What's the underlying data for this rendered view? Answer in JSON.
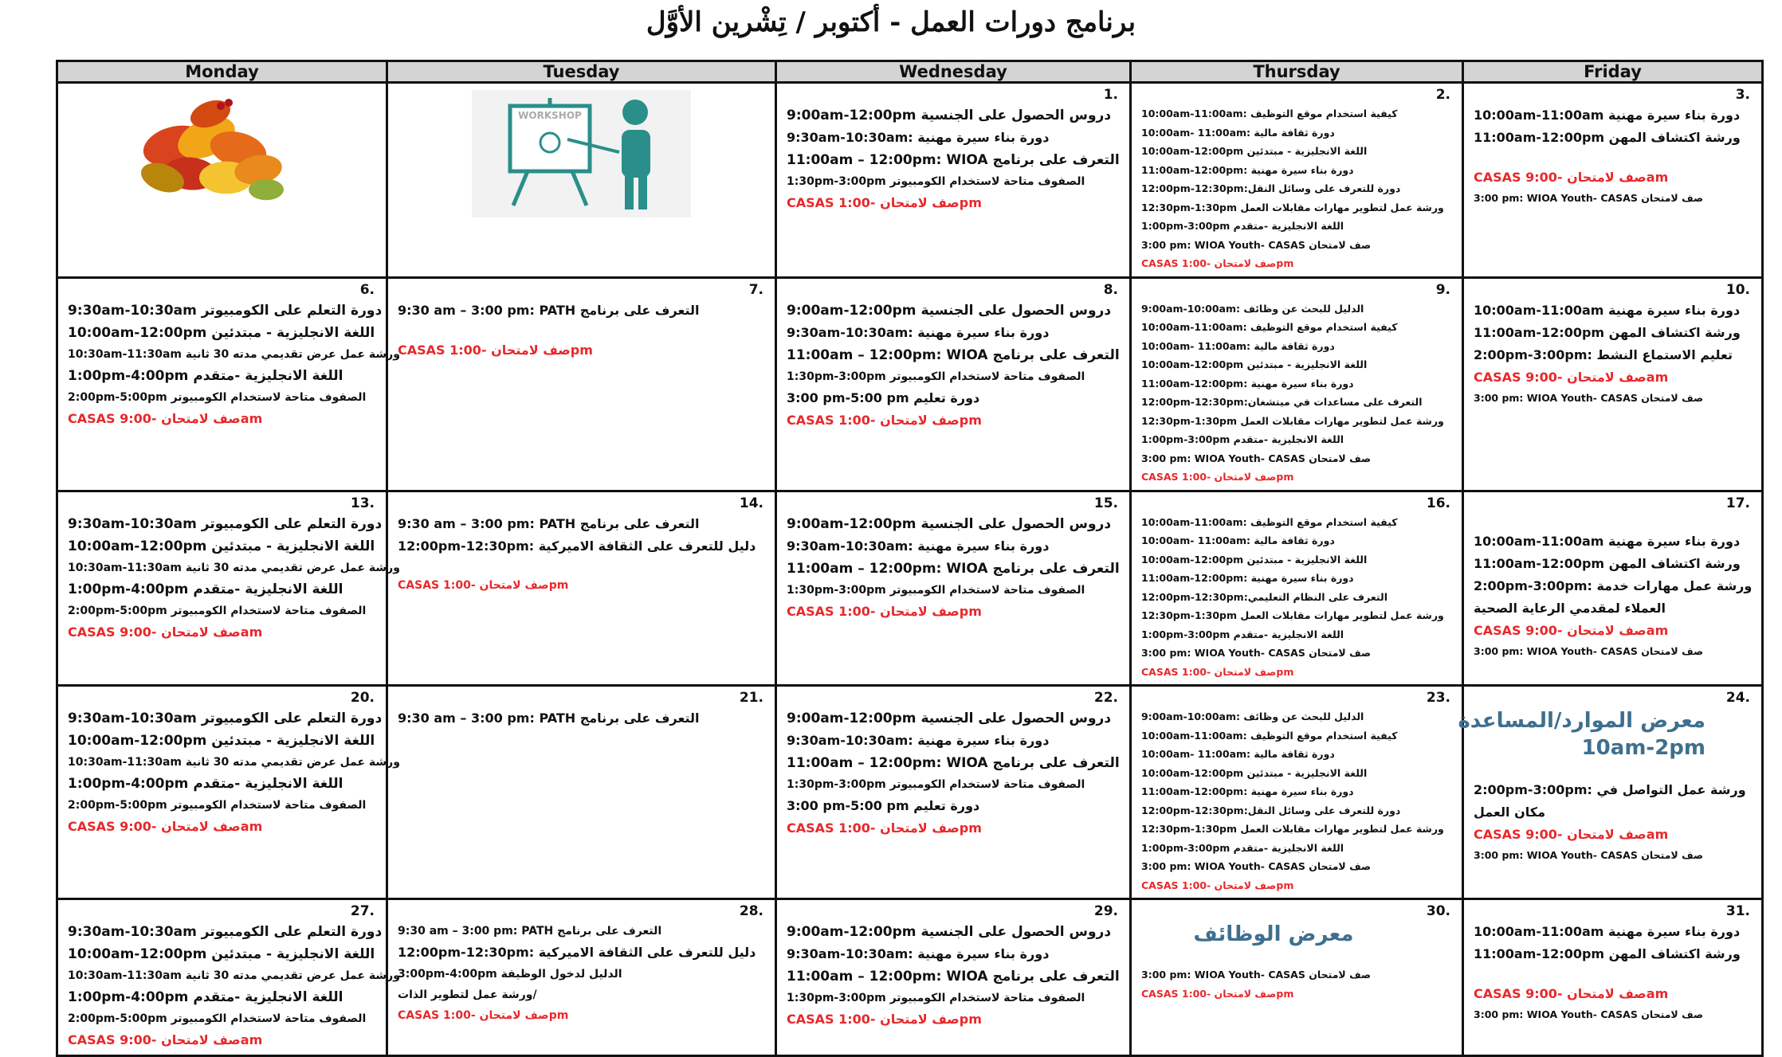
{
  "title": "برنامج دورات العمل - أكتوبر / تِشْرين الأوَّل",
  "weekdays": [
    "Monday",
    "Tuesday",
    "Wednesday",
    "Thursday",
    "Friday"
  ],
  "colors": {
    "header_bg": "#d4d4d4",
    "red": "#e8282b",
    "blue": "#3f6f8f"
  },
  "weeks": [
    [
      {
        "date": "",
        "image": "autumn-leaves",
        "lines": []
      },
      {
        "date": "",
        "image": "workshop",
        "image_text": "WORKSHOP",
        "lines": []
      },
      {
        "date": "1.",
        "lines": [
          {
            "c": "l",
            "t": "9:00am-12:00pm دروس الحصول على الجنسية"
          },
          {
            "c": "m",
            "t": "9:30am-10:30am: دورة بناء سيرة مهنية"
          },
          {
            "c": "l",
            "t": "11:00am – 12:00pm:  WIOA التعرف على برنامج"
          },
          {
            "c": "s",
            "t": "1:30pm-3:00pm الصفوف متاحة لاستخدام الكومبيوتر"
          },
          {
            "c": "m red",
            "t": "CASAS صف لامتحان -1:00pm"
          }
        ]
      },
      {
        "date": "2.",
        "lines": [
          {
            "c": "xs",
            "t": "10:00am-11:00am: كيفية استخدام موقع التوظيف"
          },
          {
            "c": "xs",
            "t": "10:00am- 11:00am:   دورة ثقافة مالية"
          },
          {
            "c": "xs",
            "t": "10:00am-12:00pm اللغة الانجليزية - مبتدئين"
          },
          {
            "c": "xs",
            "t": "11:00am-12:00pm: دورة بناء سيرة مهنية"
          },
          {
            "c": "xs",
            "t": "12:00pm-12:30pm:دورة للتعرف على وسائل النقل"
          },
          {
            "c": "xs",
            "t": "12:30pm-1:30pm ورشة عمل لتطوير مهارات مقابلات العمل"
          },
          {
            "c": "xs",
            "t": "1:00pm-3:00pm اللغة الانجليزية -متقدم"
          },
          {
            "c": "xs",
            "t": "3:00 pm: WIOA Youth- CASAS صف لامتحان"
          },
          {
            "c": "xs red",
            "t": "CASAS صف لامتحان -1:00pm"
          }
        ]
      },
      {
        "date": "3.",
        "lines": [
          {
            "c": "m",
            "t": "10:00am-11:00am دورة بناء سيرة مهنية"
          },
          {
            "c": "m",
            "t": "11:00am-12:00pm ورشة اكتشاف المهن"
          },
          {
            "gap": true
          },
          {
            "c": "m red",
            "t": "CASAS صف لامتحان -9:00am"
          },
          {
            "c": "xs",
            "t": "3:00 pm: WIOA Youth- CASAS صف لامتحان"
          }
        ]
      }
    ],
    [
      {
        "date": "6.",
        "lines": [
          {
            "c": "l",
            "t": "9:30am-10:30am دورة التعلم على الكومبيوتر"
          },
          {
            "c": "l",
            "t": "10:00am-12:00pm اللغة الانجليزية - مبتدئين"
          },
          {
            "c": "s",
            "t": "10:30am-11:30am ورشة عمل عرض تقديمي مدته 30 ثانية"
          },
          {
            "c": "l",
            "t": "1:00pm-4:00pm اللغة الانجليزية -متقدم"
          },
          {
            "c": "s",
            "t": "2:00pm-5:00pm الصفوف متاحة لاستخدام الكومبيوتر"
          },
          {
            "c": "m red",
            "t": "CASAS صف لامتحان -9:00am"
          }
        ]
      },
      {
        "date": "7.",
        "lines": [
          {
            "c": "m",
            "t": "9:30 am – 3:00 pm:  PATH التعرف على برنامج"
          },
          {
            "gap": true
          },
          {
            "c": "m red",
            "t": "CASAS صف لامتحان -1:00pm"
          }
        ]
      },
      {
        "date": "8.",
        "lines": [
          {
            "c": "l",
            "t": "9:00am-12:00pm دروس الحصول على الجنسية"
          },
          {
            "c": "m",
            "t": "9:30am-10:30am: دورة بناء سيرة مهنية"
          },
          {
            "c": "l",
            "t": "11:00am – 12:00pm:  WIOA التعرف على برنامج"
          },
          {
            "c": "s",
            "t": "1:30pm-3:00pm الصفوف متاحة لاستخدام الكومبيوتر"
          },
          {
            "c": "m",
            "t": "3:00 pm-5:00 pm دورة تعليم"
          },
          {
            "c": "m red",
            "t": "CASAS صف لامتحان -1:00pm"
          }
        ]
      },
      {
        "date": "9.",
        "lines": [
          {
            "c": "xs",
            "t": "9:00am-10:00am: الدليل للبحث عن وظائف"
          },
          {
            "c": "xs",
            "t": "10:00am-11:00am: كيفية استخدام موقع التوظيف"
          },
          {
            "c": "xs",
            "t": "10:00am- 11:00am:   دورة ثقافة مالية"
          },
          {
            "c": "xs",
            "t": "10:00am-12:00pm اللغة الانجليزية - مبتدئين"
          },
          {
            "c": "xs",
            "t": "11:00am-12:00pm: دورة بناء سيرة مهنية"
          },
          {
            "c": "xs",
            "t": "12:00pm-12:30pm:التعرف على مساعدات في ميتشغان"
          },
          {
            "c": "xs",
            "t": "12:30pm-1:30pm ورشة عمل لتطوير مهارات مقابلات العمل"
          },
          {
            "c": "xs",
            "t": "1:00pm-3:00pm اللغة الانجليزية -متقدم"
          },
          {
            "c": "xs",
            "t": "3:00 pm: WIOA Youth- CASAS صف لامتحان"
          },
          {
            "c": "xs red",
            "t": "CASAS صف لامتحان -1:00pm"
          }
        ]
      },
      {
        "date": "10.",
        "lines": [
          {
            "c": "m",
            "t": "10:00am-11:00am دورة بناء سيرة مهنية"
          },
          {
            "c": "m",
            "t": "11:00am-12:00pm ورشة اكتشاف المهن"
          },
          {
            "c": "m",
            "t": "2:00pm-3:00pm: تعليم الاستماع النشط"
          },
          {
            "c": "m red",
            "t": "CASAS صف لامتحان -9:00am"
          },
          {
            "c": "xs",
            "t": "3:00 pm: WIOA Youth- CASAS صف لامتحان"
          }
        ]
      }
    ],
    [
      {
        "date": "13.",
        "lines": [
          {
            "c": "l",
            "t": "9:30am-10:30am دورة التعلم على الكومبيوتر"
          },
          {
            "c": "l",
            "t": "10:00am-12:00pm اللغة الانجليزية - مبتدئين"
          },
          {
            "c": "s",
            "t": "10:30am-11:30am ورشة عمل عرض تقديمي مدته 30 ثانية"
          },
          {
            "c": "l",
            "t": "1:00pm-4:00pm اللغة الانجليزية -متقدم"
          },
          {
            "c": "s",
            "t": "2:00pm-5:00pm الصفوف متاحة لاستخدام الكومبيوتر"
          },
          {
            "c": "m red",
            "t": "CASAS صف لامتحان -9:00am"
          }
        ]
      },
      {
        "date": "14.",
        "lines": [
          {
            "c": "m",
            "t": "9:30 am – 3:00 pm:  PATH التعرف على برنامج"
          },
          {
            "c": "m",
            "t": "12:00pm-12:30pm: دليل للتعرف على الثقافة الاميركية"
          },
          {
            "gap": true
          },
          {
            "c": "s red",
            "t": "CASAS صف لامتحان -1:00pm"
          }
        ]
      },
      {
        "date": "15.",
        "lines": [
          {
            "c": "l",
            "t": "9:00am-12:00pm دروس الحصول على الجنسية"
          },
          {
            "c": "m",
            "t": "9:30am-10:30am: دورة بناء سيرة مهنية"
          },
          {
            "c": "l",
            "t": "11:00am – 12:00pm:  WIOA التعرف على برنامج"
          },
          {
            "c": "s",
            "t": "1:30pm-3:00pm الصفوف متاحة لاستخدام الكومبيوتر"
          },
          {
            "c": "m red",
            "t": "CASAS صف لامتحان -1:00pm"
          }
        ]
      },
      {
        "date": "16.",
        "lines": [
          {
            "c": "xs",
            "t": "10:00am-11:00am: كيفية استخدام موقع التوظيف"
          },
          {
            "c": "xs",
            "t": "10:00am- 11:00am:   دورة ثقافة مالية"
          },
          {
            "c": "xs",
            "t": "10:00am-12:00pm اللغة الانجليزية - مبتدئين"
          },
          {
            "c": "xs",
            "t": "11:00am-12:00pm: دورة بناء سيرة مهنية"
          },
          {
            "c": "xs",
            "t": "12:00pm-12:30pm:التعرف على النظام التعليمي"
          },
          {
            "c": "xs",
            "t": "12:30pm-1:30pm ورشة عمل لتطوير مهارات مقابلات العمل"
          },
          {
            "c": "xs",
            "t": "1:00pm-3:00pm اللغة الانجليزية -متقدم"
          },
          {
            "c": "xs",
            "t": "3:00 pm: WIOA Youth- CASAS صف لامتحان"
          },
          {
            "c": "xs red",
            "t": "CASAS صف لامتحان -1:00pm"
          }
        ]
      },
      {
        "date": "17.",
        "lines": [
          {
            "gap": true
          },
          {
            "c": "m",
            "t": "10:00am-11:00am دورة بناء سيرة مهنية"
          },
          {
            "c": "m",
            "t": "11:00am-12:00pm ورشة اكتشاف المهن"
          },
          {
            "c": "m wrap",
            "t": "2:00pm-3:00pm:  ورشة عمل مهارات خدمة العملاء لمقدمي الرعاية الصحية"
          },
          {
            "c": "m red",
            "t": "CASAS صف لامتحان -9:00am"
          },
          {
            "c": "xs",
            "t": "3:00 pm: WIOA Youth- CASAS صف لامتحان"
          }
        ]
      }
    ],
    [
      {
        "date": "20.",
        "lines": [
          {
            "c": "l",
            "t": "9:30am-10:30am دورة التعلم على الكومبيوتر"
          },
          {
            "c": "l",
            "t": "10:00am-12:00pm اللغة الانجليزية - مبتدئين"
          },
          {
            "c": "s",
            "t": "10:30am-11:30am ورشة عمل عرض تقديمي مدته 30 ثانية"
          },
          {
            "c": "l",
            "t": "1:00pm-4:00pm اللغة الانجليزية -متقدم"
          },
          {
            "c": "s",
            "t": "2:00pm-5:00pm الصفوف متاحة لاستخدام الكومبيوتر"
          },
          {
            "c": "m red",
            "t": "CASAS صف لامتحان -9:00am"
          }
        ]
      },
      {
        "date": "21.",
        "lines": [
          {
            "c": "m",
            "t": "9:30 am – 3:00 pm:  PATH التعرف على برنامج"
          }
        ]
      },
      {
        "date": "22.",
        "lines": [
          {
            "c": "l",
            "t": "9:00am-12:00pm دروس الحصول على الجنسية"
          },
          {
            "c": "m",
            "t": "9:30am-10:30am: دورة بناء سيرة مهنية"
          },
          {
            "c": "l",
            "t": "11:00am – 12:00pm:  WIOA التعرف على برنامج"
          },
          {
            "c": "s",
            "t": "1:30pm-3:00pm الصفوف متاحة لاستخدام الكومبيوتر"
          },
          {
            "c": "m",
            "t": "3:00 pm-5:00 pm دورة تعليم"
          },
          {
            "c": "m red",
            "t": "CASAS صف لامتحان -1:00pm"
          }
        ]
      },
      {
        "date": "23.",
        "lines": [
          {
            "c": "xs",
            "t": "9:00am-10:00am: الدليل للبحث عن وظائف"
          },
          {
            "c": "xs",
            "t": "10:00am-11:00am: كيفية استخدام موقع التوظيف"
          },
          {
            "c": "xs",
            "t": "10:00am- 11:00am:   دورة ثقافة مالية"
          },
          {
            "c": "xs",
            "t": "10:00am-12:00pm اللغة الانجليزية - مبتدئين"
          },
          {
            "c": "xs",
            "t": "11:00am-12:00pm: دورة بناء سيرة مهنية"
          },
          {
            "c": "xs",
            "t": "12:00pm-12:30pm:دورة للتعرف على وسائل النقل"
          },
          {
            "c": "xs",
            "t": "12:30pm-1:30pm ورشة عمل لتطوير مهارات مقابلات العمل"
          },
          {
            "c": "xs",
            "t": "1:00pm-3:00pm اللغة الانجليزية -متقدم"
          },
          {
            "c": "xs",
            "t": "3:00 pm: WIOA Youth- CASAS صف لامتحان"
          },
          {
            "c": "xs red",
            "t": "CASAS صف لامتحان -1:00pm"
          }
        ]
      },
      {
        "date": "24.",
        "lines": [
          {
            "c": "blue",
            "t": "معرض الموارد/المساعدة"
          },
          {
            "c": "blue",
            "t": "10am-2pm"
          },
          {
            "gap": true
          },
          {
            "c": "m wrap",
            "t": "2:00pm-3:00pm:  ورشة عمل التواصل في مكان العمل"
          },
          {
            "c": "m red",
            "t": "CASAS صف لامتحان -9:00am"
          },
          {
            "c": "xs",
            "t": "3:00 pm: WIOA Youth- CASAS صف لامتحان"
          }
        ]
      }
    ],
    [
      {
        "date": "27.",
        "lines": [
          {
            "c": "l",
            "t": "9:30am-10:30am دورة التعلم على الكومبيوتر"
          },
          {
            "c": "l",
            "t": "10:00am-12:00pm اللغة الانجليزية - مبتدئين"
          },
          {
            "c": "s",
            "t": "10:30am-11:30am ورشة عمل عرض تقديمي مدته 30 ثانية"
          },
          {
            "c": "l",
            "t": "1:00pm-4:00pm اللغة الانجليزية -متقدم"
          },
          {
            "c": "s",
            "t": "2:00pm-5:00pm الصفوف متاحة لاستخدام الكومبيوتر"
          },
          {
            "c": "m red",
            "t": "CASAS صف لامتحان -9:00am"
          }
        ]
      },
      {
        "date": "28.",
        "lines": [
          {
            "c": "s",
            "t": "9:30 am – 3:00 pm:  PATH التعرف على برنامج"
          },
          {
            "c": "m",
            "t": "12:00pm-12:30pm: دليل للتعرف على الثقافة الاميركية"
          },
          {
            "c": "s",
            "t": "3:00pm-4:00pm الدليل لدخول الوظيفة"
          },
          {
            "c": "s",
            "t": "ورشة عمل لتطوير الذات/"
          },
          {
            "c": "s red",
            "t": "CASAS صف لامتحان -1:00pm"
          }
        ]
      },
      {
        "date": "29.",
        "lines": [
          {
            "c": "l",
            "t": "9:00am-12:00pm دروس الحصول على الجنسية"
          },
          {
            "c": "m",
            "t": "9:30am-10:30am: دورة بناء سيرة مهنية"
          },
          {
            "c": "l",
            "t": "11:00am – 12:00pm:  WIOA التعرف على برنامج"
          },
          {
            "c": "s",
            "t": "1:30pm-3:00pm الصفوف متاحة لاستخدام الكومبيوتر"
          },
          {
            "c": "m red",
            "t": "CASAS صف لامتحان -1:00pm"
          }
        ]
      },
      {
        "date": "30.",
        "lines": [
          {
            "c": "blue center",
            "t": "معرض الوظائف"
          },
          {
            "gap": true
          },
          {
            "c": "xs",
            "t": "3:00 pm: WIOA Youth- CASAS صف لامتحان"
          },
          {
            "c": "xs red",
            "t": "CASAS صف لامتحان -1:00pm"
          }
        ]
      },
      {
        "date": "31.",
        "lines": [
          {
            "c": "m",
            "t": "10:00am-11:00am دورة بناء سيرة مهنية"
          },
          {
            "c": "m",
            "t": "11:00am-12:00pm ورشة اكتشاف المهن"
          },
          {
            "gap": true
          },
          {
            "c": "m red",
            "t": "CASAS صف لامتحان -9:00am"
          },
          {
            "c": "xs",
            "t": "3:00 pm: WIOA Youth- CASAS صف لامتحان"
          }
        ]
      }
    ]
  ]
}
